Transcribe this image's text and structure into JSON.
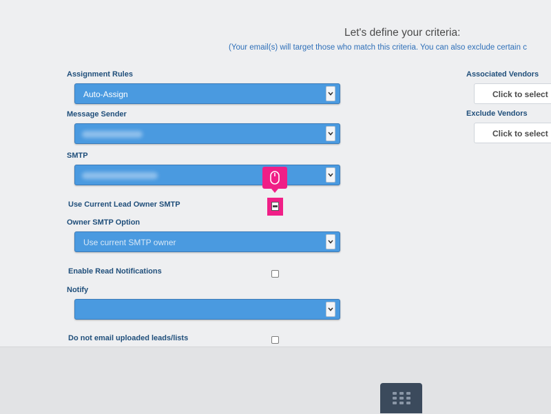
{
  "header": {
    "title": "Let's define your criteria:",
    "subtitle": "(Your email(s) will target those who match this criteria. You can also exclude certain c"
  },
  "form": {
    "assignment_rules": {
      "label": "Assignment Rules",
      "value": "Auto-Assign"
    },
    "message_sender": {
      "label": "Message Sender",
      "value": ""
    },
    "smtp": {
      "label": "SMTP",
      "value": ""
    },
    "use_current_lead_owner_smtp": {
      "label": "Use Current Lead Owner SMTP",
      "checked": false
    },
    "owner_smtp_option": {
      "label": "Owner SMTP Option",
      "value": "Use current SMTP owner"
    },
    "enable_read_notifications": {
      "label": "Enable Read Notifications",
      "checked": false
    },
    "notify": {
      "label": "Notify",
      "value": ""
    },
    "do_not_email_uploaded": {
      "label": "Do not email uploaded leads/lists",
      "checked": false
    }
  },
  "vendors": {
    "associated": {
      "label": "Associated Vendors",
      "placeholder": "Click to select"
    },
    "exclude": {
      "label": "Exclude Vendors",
      "placeholder": "Click to select"
    }
  },
  "overlay": {
    "cursor_icon": "mouse-icon",
    "highlight_color": "#f01f87"
  },
  "footer": {
    "app_icon": "grid-icon"
  },
  "colors": {
    "select_bg": "#4a9ae0",
    "label_text": "#1f4e7a",
    "subtitle_text": "#2e6fb8",
    "highlight": "#f01f87"
  }
}
